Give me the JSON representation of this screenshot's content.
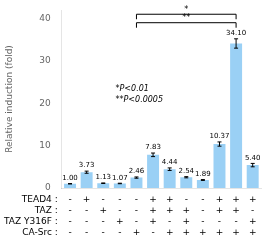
{
  "chart_data": {
    "type": "bar",
    "categories": [
      null,
      null,
      null,
      null,
      null,
      null,
      null,
      null,
      null,
      null,
      null,
      null
    ],
    "values": [
      1.0,
      3.73,
      1.13,
      1.07,
      2.46,
      7.83,
      4.44,
      2.54,
      1.89,
      10.37,
      34.1,
      5.4
    ],
    "errors": [
      0.05,
      0.25,
      0.06,
      0.06,
      0.15,
      0.42,
      0.3,
      0.14,
      0.1,
      0.5,
      1.1,
      0.4
    ],
    "value_labels": [
      "1.00",
      "3.73",
      "1.13",
      "1.07",
      "2.46",
      "7.83",
      "4.44",
      "2.54",
      "1.89",
      "10.37",
      "34.10",
      "5.40"
    ],
    "data_labels": true,
    "ylabel": "Relative induction (fold)",
    "ylim": [
      0,
      42
    ],
    "yticks": [
      0,
      10,
      20,
      30,
      40
    ],
    "grid": false,
    "annotation": "*P<0.01\n**P<0.0005",
    "significance": [
      {
        "label": "**",
        "from": 4,
        "to": 10,
        "y": 39
      },
      {
        "label": "*",
        "from": 4,
        "to": 10,
        "y": 41
      }
    ],
    "table": {
      "row_labels": [
        "TEAD4 :",
        "TAZ :",
        "TAZ Y316F :",
        "CA-Src :"
      ],
      "rows": [
        [
          "-",
          "+",
          "-",
          "-",
          "-",
          "+",
          "+",
          "-",
          "-",
          "+",
          "+",
          "+"
        ],
        [
          "-",
          "-",
          "+",
          "-",
          "-",
          "+",
          "+",
          "+",
          "-",
          "+",
          "+",
          "-"
        ],
        [
          "-",
          "-",
          "-",
          "+",
          "-",
          "+",
          "-",
          "+",
          "-",
          "-",
          "-",
          "+"
        ],
        [
          "-",
          "-",
          "-",
          "-",
          "+",
          "-",
          "+",
          "+",
          "+",
          "+",
          "+",
          "+"
        ]
      ]
    }
  }
}
